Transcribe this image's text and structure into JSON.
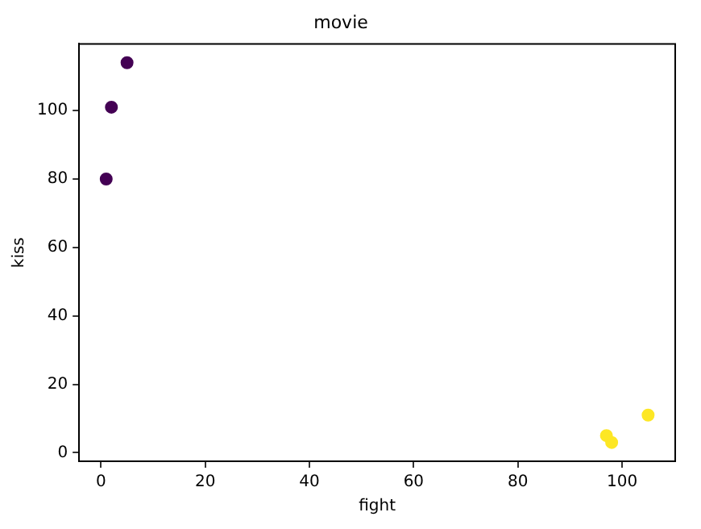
{
  "chart_data": {
    "type": "scatter",
    "title": "movie",
    "xlabel": "fight",
    "ylabel": "kiss",
    "x": [
      1,
      2,
      5,
      97,
      98,
      105
    ],
    "values": [
      80,
      101,
      114,
      5,
      3,
      11
    ],
    "colors": [
      "#440154",
      "#440154",
      "#440154",
      "#fde725",
      "#fde725",
      "#fde725"
    ],
    "xlim": [
      -4.2,
      110.2
    ],
    "ylim": [
      -2.5,
      119.5
    ],
    "xticks": [
      0,
      20,
      40,
      60,
      80,
      100
    ],
    "yticks": [
      0,
      20,
      40,
      60,
      80,
      100
    ],
    "grid": false,
    "legend": false,
    "marker": "circle"
  }
}
